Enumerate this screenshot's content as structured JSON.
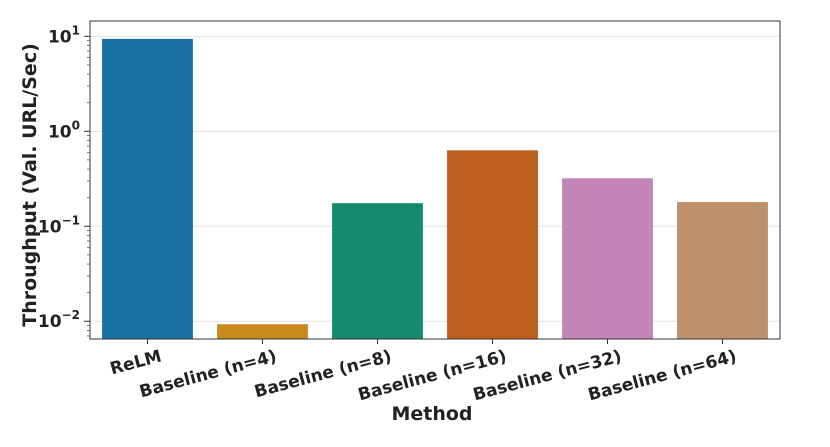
{
  "chart_data": {
    "type": "bar",
    "xlabel": "Method",
    "ylabel": "Throughput (Val. URL/Sec)",
    "yscale": "log",
    "ylim": [
      0.0065,
      14.5
    ],
    "y_ticks": [
      0.01,
      0.1,
      1,
      10
    ],
    "y_tick_labels": [
      {
        "base": "10",
        "exp": "−2"
      },
      {
        "base": "10",
        "exp": "−1"
      },
      {
        "base": "10",
        "exp": "0"
      },
      {
        "base": "10",
        "exp": "1"
      }
    ],
    "grid": true,
    "legend": "none",
    "categories": [
      "ReLM",
      "Baseline (n=4)",
      "Baseline (n=8)",
      "Baseline (n=16)",
      "Baseline (n=32)",
      "Baseline (n=64)"
    ],
    "values": [
      9.4,
      0.0093,
      0.175,
      0.63,
      0.32,
      0.18
    ],
    "colors": [
      "#1a6fa3",
      "#c98a1c",
      "#168a6e",
      "#bb5e1e",
      "#c385b8",
      "#bd916c"
    ]
  }
}
